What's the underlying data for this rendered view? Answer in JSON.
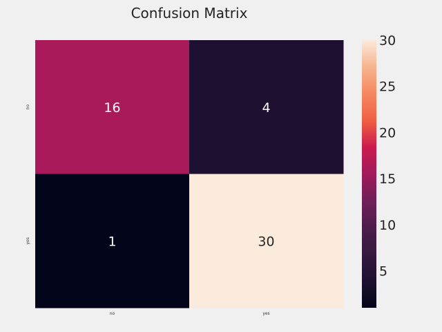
{
  "chart_data": {
    "type": "heatmap",
    "title": "Confusion Matrix",
    "xlabel": "",
    "ylabel": "",
    "x_categories": [
      "no",
      "yes"
    ],
    "y_categories": [
      "no",
      "yes"
    ],
    "values": [
      [
        16,
        4
      ],
      [
        1,
        30
      ]
    ],
    "annotations": [
      "16",
      "4",
      "1",
      "30"
    ],
    "colormap": "rocket",
    "color_range": [
      1,
      30
    ],
    "colorbar": {
      "ticks": [
        5,
        10,
        15,
        20,
        25,
        30
      ],
      "tick_labels": [
        "5",
        "10",
        "15",
        "20",
        "25",
        "30"
      ],
      "placement": "right"
    },
    "grid": false
  },
  "colors": {
    "background": "#f0f0f0",
    "text_dark": "#222222",
    "annotation_light": "#ffffff",
    "annotation_dark": "#262626"
  }
}
